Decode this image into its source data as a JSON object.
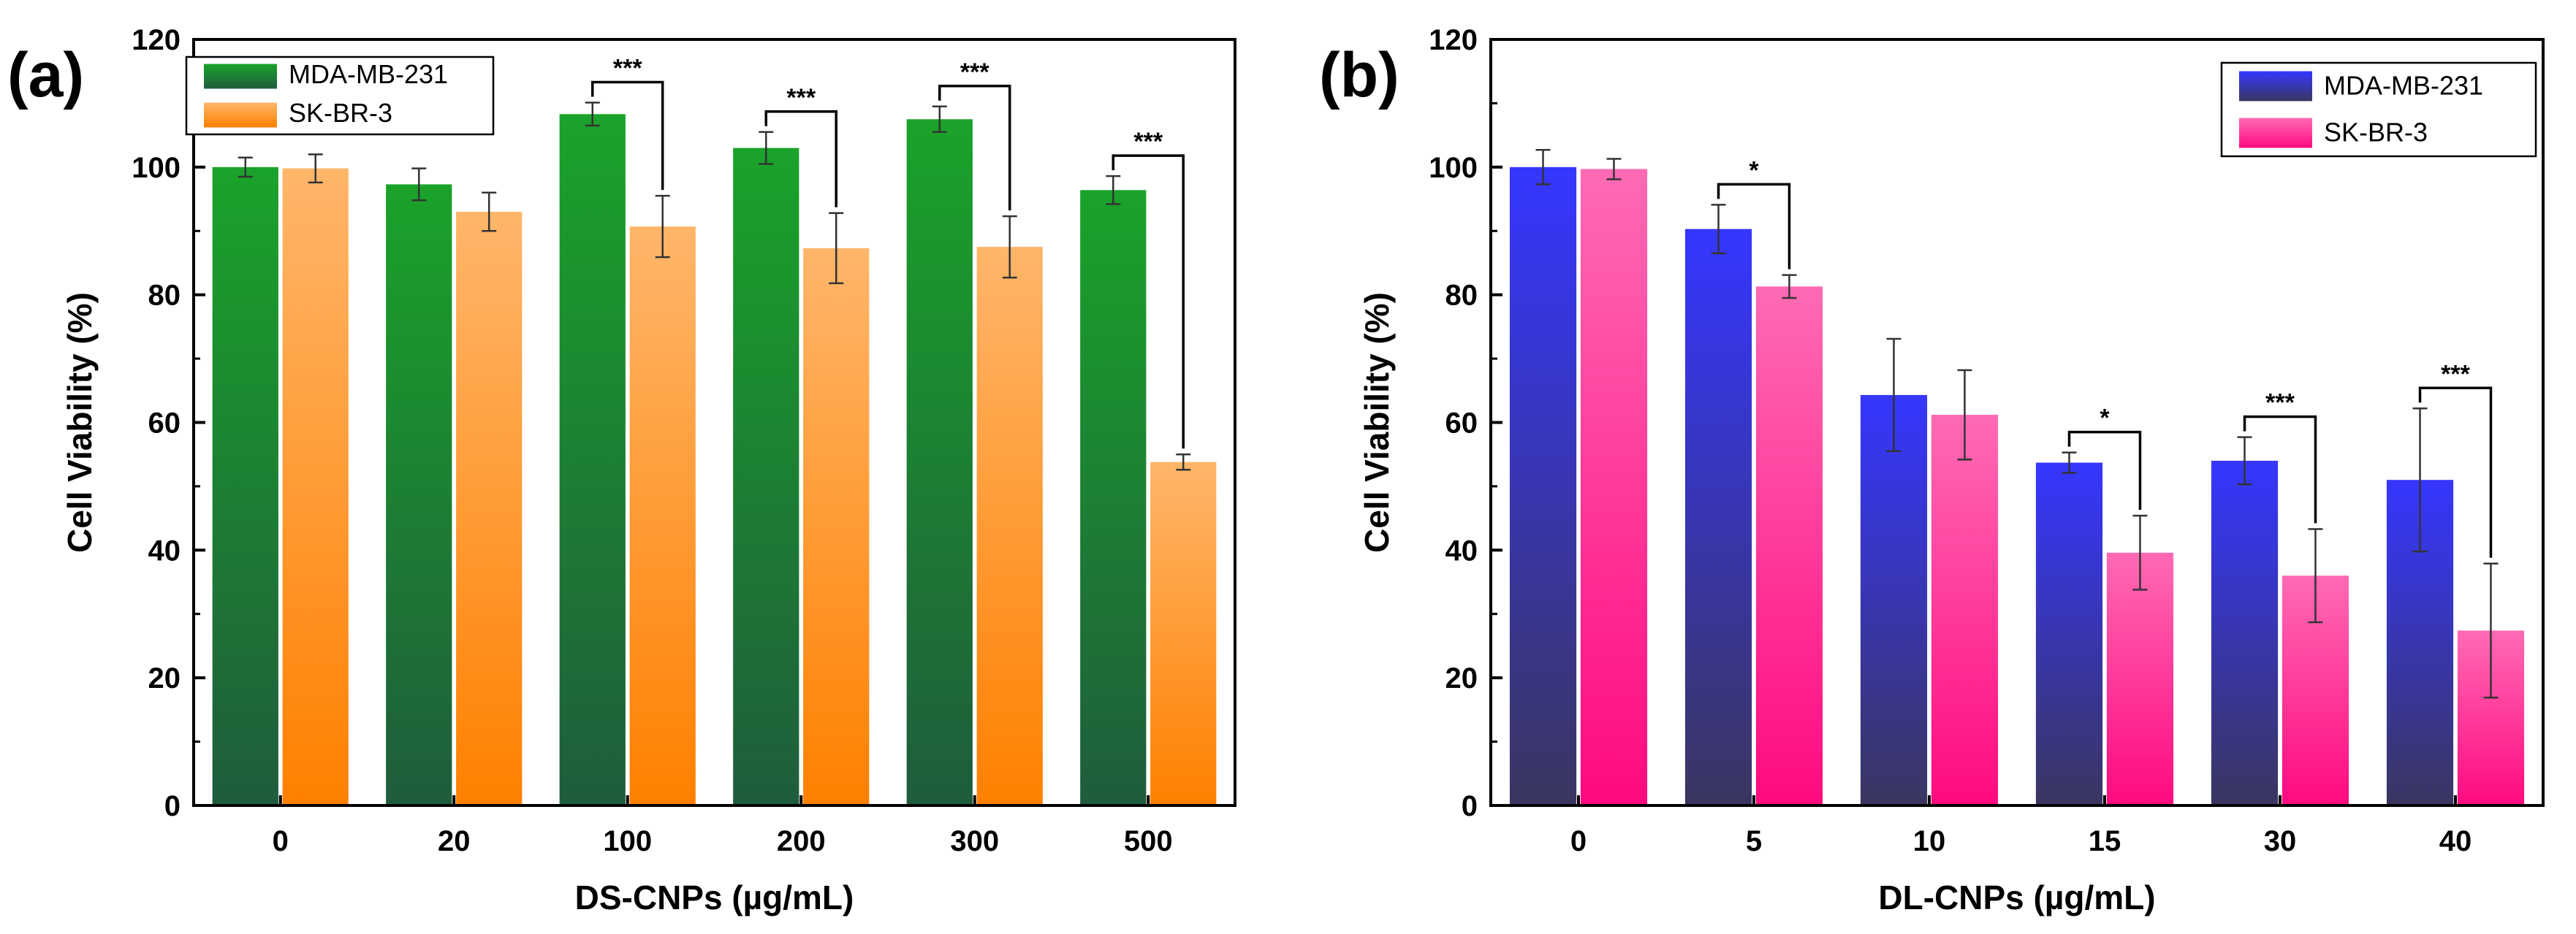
{
  "chart_data": [
    {
      "panel_label": "(a)",
      "type": "bar",
      "xlabel": "DS-CNPs (µg/mL)",
      "ylabel": "Cell Viability (%)",
      "ylim": [
        0,
        120
      ],
      "yticks": [
        0,
        20,
        40,
        60,
        80,
        100,
        120
      ],
      "categories": [
        "0",
        "20",
        "100",
        "200",
        "300",
        "500"
      ],
      "legend_position": "top-left",
      "series": [
        {
          "name": "MDA-MB-231",
          "values": [
            100,
            97.3,
            108.3,
            103,
            107.5,
            96.4
          ],
          "errors": [
            1.5,
            2.5,
            1.8,
            2.5,
            2.0,
            2.2
          ],
          "color_top": "#1aa32a",
          "color_bottom": "#1f5c3c"
        },
        {
          "name": "SK-BR-3",
          "values": [
            99.8,
            93,
            90.7,
            87.3,
            87.5,
            53.8
          ],
          "errors": [
            2.2,
            3.0,
            4.8,
            5.5,
            4.8,
            1.2
          ],
          "color_top": "#ffb66a",
          "color_bottom": "#ff8000"
        }
      ],
      "significance": [
        {
          "category_index": 2,
          "label": "***"
        },
        {
          "category_index": 3,
          "label": "***"
        },
        {
          "category_index": 4,
          "label": "***"
        },
        {
          "category_index": 5,
          "label": "***"
        }
      ]
    },
    {
      "panel_label": "(b)",
      "type": "bar",
      "xlabel": "DL-CNPs (µg/mL)",
      "ylabel": "Cell Viability (%)",
      "ylim": [
        0,
        120
      ],
      "yticks": [
        0,
        20,
        40,
        60,
        80,
        100,
        120
      ],
      "categories": [
        "0",
        "5",
        "10",
        "15",
        "30",
        "40"
      ],
      "legend_position": "top-right",
      "series": [
        {
          "name": "MDA-MB-231",
          "values": [
            100,
            90.3,
            64.3,
            53.7,
            54,
            51
          ],
          "errors": [
            2.7,
            3.8,
            8.8,
            1.6,
            3.7,
            11.2
          ],
          "color_top": "#3636ff",
          "color_bottom": "#3a3660"
        },
        {
          "name": "SK-BR-3",
          "values": [
            99.7,
            81.3,
            61.2,
            39.6,
            36,
            27.4
          ],
          "errors": [
            1.6,
            1.8,
            7.0,
            5.8,
            7.3,
            10.5
          ],
          "color_top": "#ff6ab4",
          "color_bottom": "#ff0a80"
        }
      ],
      "significance": [
        {
          "category_index": 1,
          "label": "*"
        },
        {
          "category_index": 3,
          "label": "*"
        },
        {
          "category_index": 4,
          "label": "***"
        },
        {
          "category_index": 5,
          "label": "***"
        }
      ]
    }
  ]
}
